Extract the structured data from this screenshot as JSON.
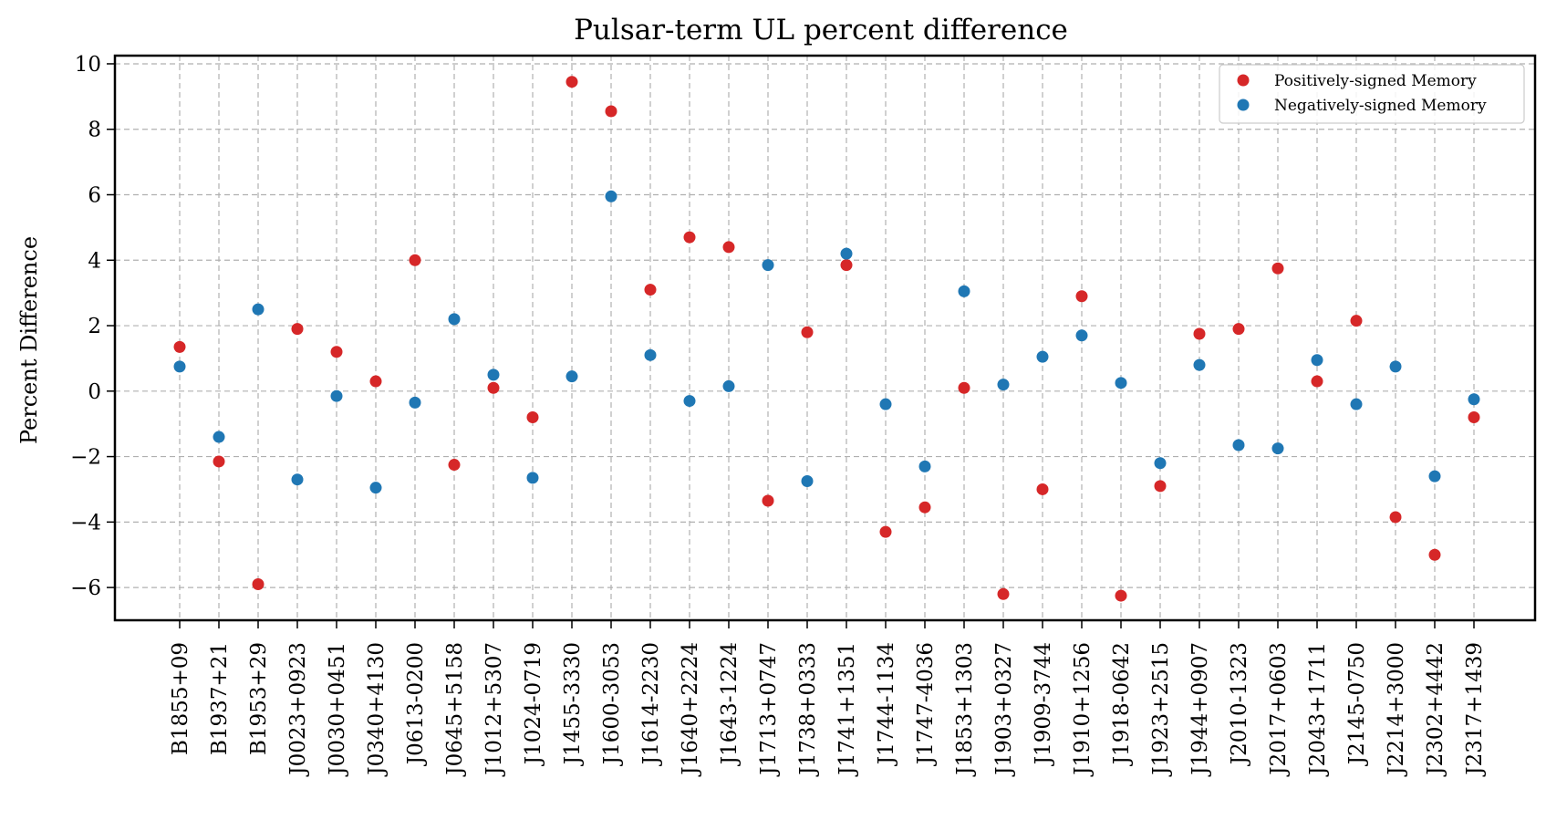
{
  "chart_data": {
    "type": "scatter",
    "title": "Pulsar-term UL percent difference",
    "xlabel": "",
    "ylabel": "Percent Difference",
    "ylim": [
      -7.0,
      10.25
    ],
    "yticks": [
      -6,
      -4,
      -2,
      0,
      2,
      4,
      6,
      8,
      10
    ],
    "ytick_labels": [
      "−6",
      "−4",
      "−2",
      "0",
      "2",
      "4",
      "6",
      "8",
      "10"
    ],
    "grid": true,
    "legend_position": "top-right",
    "categories": [
      "B1855+09",
      "B1937+21",
      "B1953+29",
      "J0023+0923",
      "J0030+0451",
      "J0340+4130",
      "J0613-0200",
      "J0645+5158",
      "J1012+5307",
      "J1024-0719",
      "J1455-3330",
      "J1600-3053",
      "J1614-2230",
      "J1640+2224",
      "J1643-1224",
      "J1713+0747",
      "J1738+0333",
      "J1741+1351",
      "J1744-1134",
      "J1747-4036",
      "J1853+1303",
      "J1903+0327",
      "J1909-3744",
      "J1910+1256",
      "J1918-0642",
      "J1923+2515",
      "J1944+0907",
      "J2010-1323",
      "J2017+0603",
      "J2043+1711",
      "J2145-0750",
      "J2214+3000",
      "J2302+4442",
      "J2317+1439"
    ],
    "series": [
      {
        "name": "Positively-signed Memory",
        "color": "#d62728",
        "values": [
          1.35,
          -2.15,
          -5.9,
          1.9,
          1.2,
          0.3,
          4.0,
          -2.25,
          0.1,
          -0.8,
          9.45,
          8.55,
          3.1,
          4.7,
          4.4,
          -3.35,
          1.8,
          3.85,
          -4.3,
          -3.55,
          0.1,
          -6.2,
          -3.0,
          2.9,
          -6.25,
          -2.9,
          1.75,
          1.9,
          3.75,
          0.3,
          2.15,
          -3.85,
          -5.0,
          -0.8
        ]
      },
      {
        "name": "Negatively-signed Memory",
        "color": "#1f77b4",
        "values": [
          0.75,
          -1.4,
          2.5,
          -2.7,
          -0.15,
          -2.95,
          -0.35,
          2.2,
          0.5,
          -2.65,
          0.45,
          5.95,
          1.1,
          -0.3,
          0.15,
          3.85,
          -2.75,
          4.2,
          -0.4,
          -2.3,
          3.05,
          0.2,
          1.05,
          1.7,
          0.25,
          -2.2,
          0.8,
          -1.65,
          -1.75,
          0.95,
          -0.4,
          0.75,
          -2.6,
          -0.25
        ]
      }
    ]
  }
}
